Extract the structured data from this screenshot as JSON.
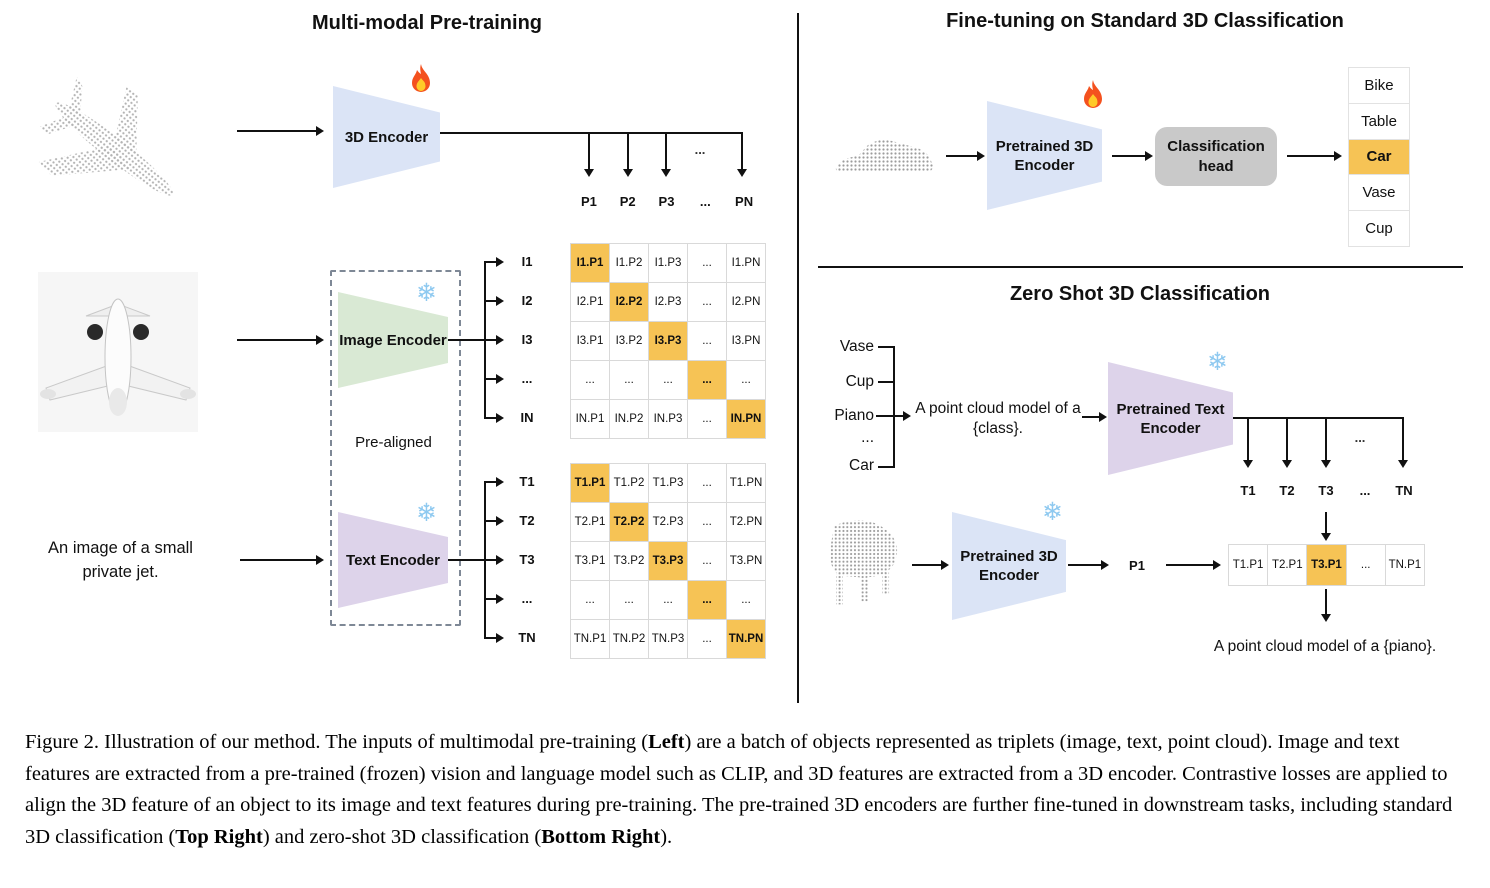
{
  "left_panel": {
    "title": "Multi-modal Pre-training",
    "encoder_3d_label": "3D Encoder",
    "image_encoder_label": "Image Encoder",
    "text_encoder_label": "Text Encoder",
    "pre_aligned_label": "Pre-aligned",
    "text_prompt": "An image of a small private jet.",
    "branch_ellipsis": "...",
    "p_row": [
      "P1",
      "P2",
      "P3",
      "...",
      "PN"
    ],
    "image_row_labels": [
      "I1",
      "I2",
      "I3",
      "...",
      "IN"
    ],
    "image_matrix": [
      [
        "I1.P1",
        "I1.P2",
        "I1.P3",
        "...",
        "I1.PN"
      ],
      [
        "I2.P1",
        "I2.P2",
        "I2.P3",
        "...",
        "I2.PN"
      ],
      [
        "I3.P1",
        "I3.P2",
        "I3.P3",
        "...",
        "I3.PN"
      ],
      [
        "...",
        "...",
        "...",
        "...",
        "..."
      ],
      [
        "IN.P1",
        "IN.P2",
        "IN.P3",
        "...",
        "IN.PN"
      ]
    ],
    "text_row_labels": [
      "T1",
      "T2",
      "T3",
      "...",
      "TN"
    ],
    "text_matrix": [
      [
        "T1.P1",
        "T1.P2",
        "T1.P3",
        "...",
        "T1.PN"
      ],
      [
        "T2.P1",
        "T2.P2",
        "T2.P3",
        "...",
        "T2.PN"
      ],
      [
        "T3.P1",
        "T3.P2",
        "T3.P3",
        "...",
        "T3.PN"
      ],
      [
        "...",
        "...",
        "...",
        "...",
        "..."
      ],
      [
        "TN.P1",
        "TN.P2",
        "TN.P3",
        "...",
        "TN.PN"
      ]
    ]
  },
  "top_right_panel": {
    "title": "Fine-tuning on Standard 3D Classification",
    "encoder_label": "Pretrained 3D Encoder",
    "head_label": "Classification head",
    "classes": [
      "Bike",
      "Table",
      "Car",
      "Vase",
      "Cup"
    ],
    "predicted_index": 2
  },
  "bottom_right_panel": {
    "title": "Zero Shot 3D Classification",
    "class_candidates": [
      "Vase",
      "Cup",
      "Piano",
      "...",
      "Car"
    ],
    "prompt": "A point cloud model of a {class}.",
    "text_encoder_label": "Pretrained Text Encoder",
    "encoder_3d_label": "Pretrained 3D Encoder",
    "p_feature_label": "P1",
    "branch_ellipsis": "...",
    "t_row": [
      "T1",
      "T2",
      "T3",
      "...",
      "TN"
    ],
    "similarity_row": [
      "T1.P1",
      "T2.P1",
      "T3.P1",
      "...",
      "TN.P1"
    ],
    "best_match_index": 2,
    "result_prompt": "A point cloud model of a {piano}."
  },
  "icons": {
    "trainable": "fire-icon",
    "frozen": "snowflake-icon",
    "snowflake_glyph": "❄"
  },
  "colors": {
    "highlight_orange": "#f6c355",
    "feature_blue": "#dbe4f6",
    "image_green": "#d9e9d4",
    "text_purple": "#ddd3ea",
    "head_gray": "#c9c9c9"
  },
  "caption": {
    "segments": [
      {
        "text": "Figure 2. Illustration of our method.  The inputs of multimodal pre-training (",
        "bold": false
      },
      {
        "text": "Left",
        "bold": true
      },
      {
        "text": ") are a batch of objects represented as triplets (image, text, point cloud).  Image and text features are extracted from a pre-trained (frozen) vision and language model such as CLIP, and 3D features are extracted from a 3D encoder.  Contrastive losses are applied to align the 3D feature of an object to its image and text features during pre-training.  The pre-trained 3D encoders are further fine-tuned in downstream tasks, including standard 3D classification (",
        "bold": false
      },
      {
        "text": "Top Right",
        "bold": true
      },
      {
        "text": ") and zero-shot 3D classification (",
        "bold": false
      },
      {
        "text": "Bottom Right",
        "bold": true
      },
      {
        "text": ").",
        "bold": false
      }
    ]
  }
}
